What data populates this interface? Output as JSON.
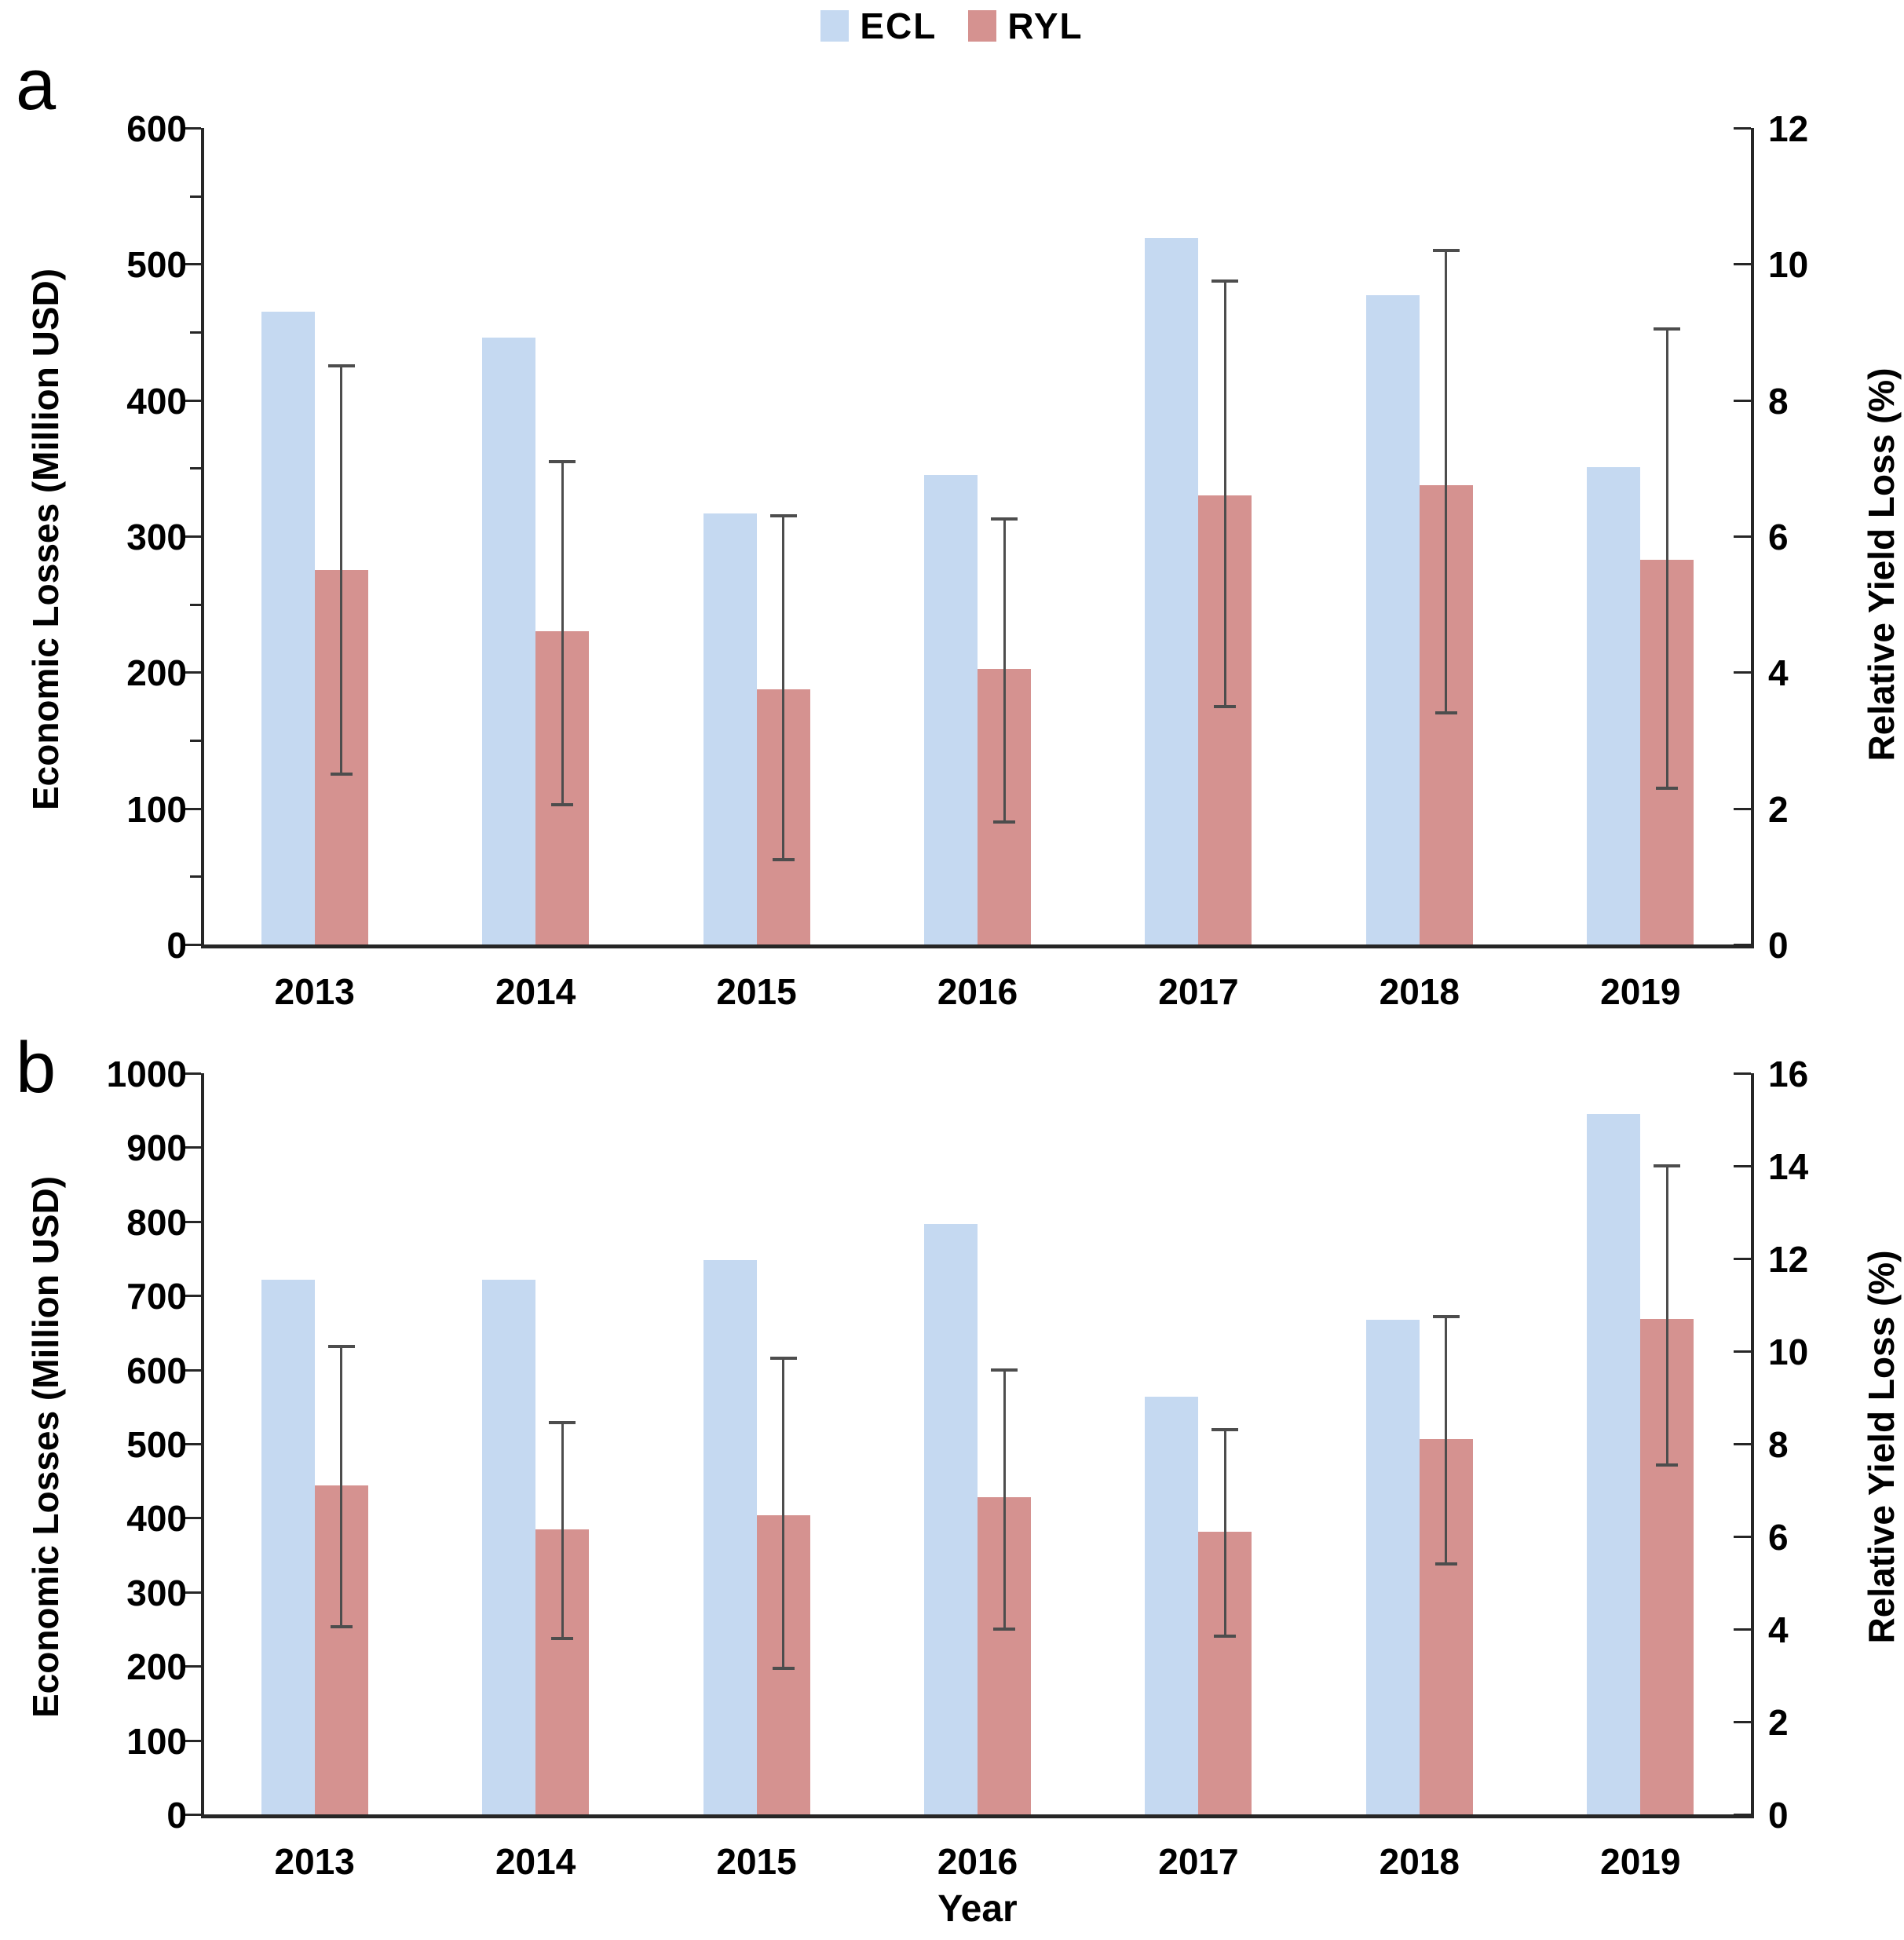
{
  "legend": {
    "position": "top-center",
    "items": [
      {
        "label": "ECL",
        "color": "#c5d9f1"
      },
      {
        "label": "RYL",
        "color": "#d59290"
      }
    ]
  },
  "colors": {
    "ecl_bar": "#c5d9f1",
    "ryl_bar": "#d59290",
    "error_bar": "#4d4d4d",
    "axis": "#262626",
    "text": "#000000"
  },
  "chart_data": [
    {
      "type": "bar",
      "panel_label": "a",
      "title": "",
      "grid": false,
      "legend_position": "top-center-shared",
      "categories": [
        "2013",
        "2014",
        "2015",
        "2016",
        "2017",
        "2018",
        "2019"
      ],
      "xlabel": "",
      "left_axis": {
        "label": "Economic Losses (Million USD)",
        "min": 0,
        "max": 600,
        "tick_interval": 100,
        "minor_tick_interval": 50
      },
      "right_axis": {
        "label": "Relative Yield Loss (%)",
        "min": 0,
        "max": 12,
        "tick_interval": 2
      },
      "series": [
        {
          "name": "ECL",
          "axis": "left",
          "color": "#c5d9f1",
          "values": [
            465,
            446,
            317,
            345,
            519,
            477,
            351
          ]
        },
        {
          "name": "RYL",
          "axis": "right",
          "color": "#d59290",
          "values": [
            5.5,
            4.6,
            3.75,
            4.05,
            6.6,
            6.75,
            5.65
          ],
          "error_low": [
            2.5,
            2.05,
            1.25,
            1.8,
            3.5,
            3.4,
            2.3
          ],
          "error_high": [
            8.5,
            7.1,
            6.3,
            6.25,
            9.75,
            10.2,
            9.05
          ]
        }
      ]
    },
    {
      "type": "bar",
      "panel_label": "b",
      "title": "",
      "grid": false,
      "legend_position": "top-center-shared",
      "categories": [
        "2013",
        "2014",
        "2015",
        "2016",
        "2017",
        "2018",
        "2019"
      ],
      "xlabel": "Year",
      "left_axis": {
        "label": "Economic Losses (Million USD)",
        "min": 0,
        "max": 1000,
        "tick_interval": 100
      },
      "right_axis": {
        "label": "Relative Yield Loss (%)",
        "min": 0,
        "max": 16,
        "tick_interval": 2
      },
      "series": [
        {
          "name": "ECL",
          "axis": "left",
          "color": "#c5d9f1",
          "values": [
            721,
            721,
            748,
            797,
            564,
            667,
            945
          ]
        },
        {
          "name": "RYL",
          "axis": "right",
          "color": "#d59290",
          "values": [
            7.1,
            6.15,
            6.45,
            6.85,
            6.1,
            8.1,
            10.7
          ],
          "error_low": [
            4.05,
            3.8,
            3.15,
            4.0,
            3.85,
            5.4,
            7.55
          ],
          "error_high": [
            10.1,
            8.45,
            9.85,
            9.6,
            8.3,
            10.75,
            14.0
          ]
        }
      ]
    }
  ]
}
